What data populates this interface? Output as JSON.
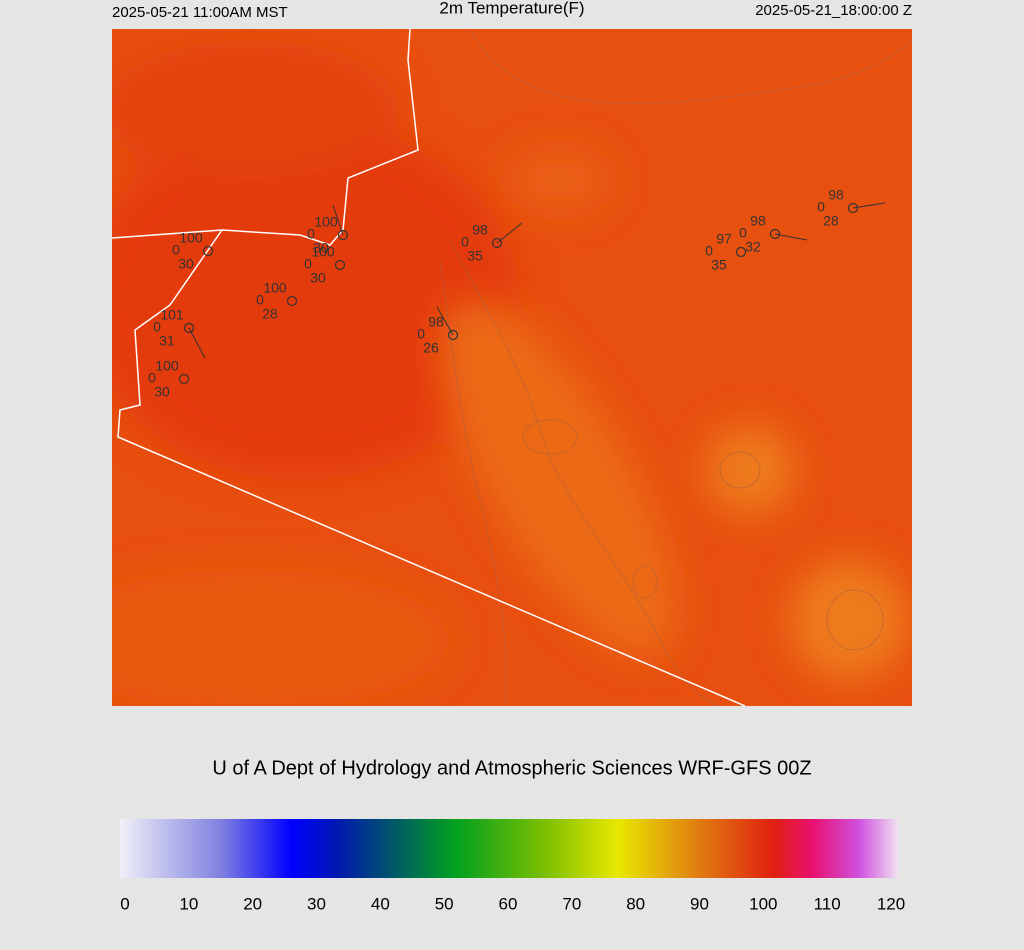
{
  "header": {
    "left": "2025-05-21 11:00AM MST",
    "title": "2m Temperature(F)",
    "right": "2025-05-21_18:00:00 Z"
  },
  "stations": [
    {
      "temp": 100,
      "wind": 0,
      "dew": 30
    },
    {
      "temp": 100,
      "wind": 0,
      "dew": 30
    },
    {
      "temp": 100,
      "wind": 0,
      "dew": 30
    },
    {
      "temp": 100,
      "wind": 0,
      "dew": 28
    },
    {
      "temp": 101,
      "wind": 0,
      "dew": 31
    },
    {
      "temp": 100,
      "wind": 0,
      "dew": 30
    },
    {
      "temp": 98,
      "wind": 0,
      "dew": 26
    },
    {
      "temp": 98,
      "wind": 0,
      "dew": 35
    },
    {
      "temp": 97,
      "wind": 0,
      "dew": 35
    },
    {
      "temp": 98,
      "wind": 0,
      "dew": 32
    },
    {
      "temp": 98,
      "wind": 0,
      "dew": 28
    }
  ],
  "footer": {
    "credit": "U of A Dept of Hydrology and Atmospheric Sciences WRF-GFS 00Z"
  },
  "colorbar": {
    "lim": [
      0,
      120
    ],
    "ticks": [
      0,
      10,
      20,
      30,
      40,
      50,
      60,
      70,
      80,
      90,
      100,
      110,
      120
    ]
  }
}
